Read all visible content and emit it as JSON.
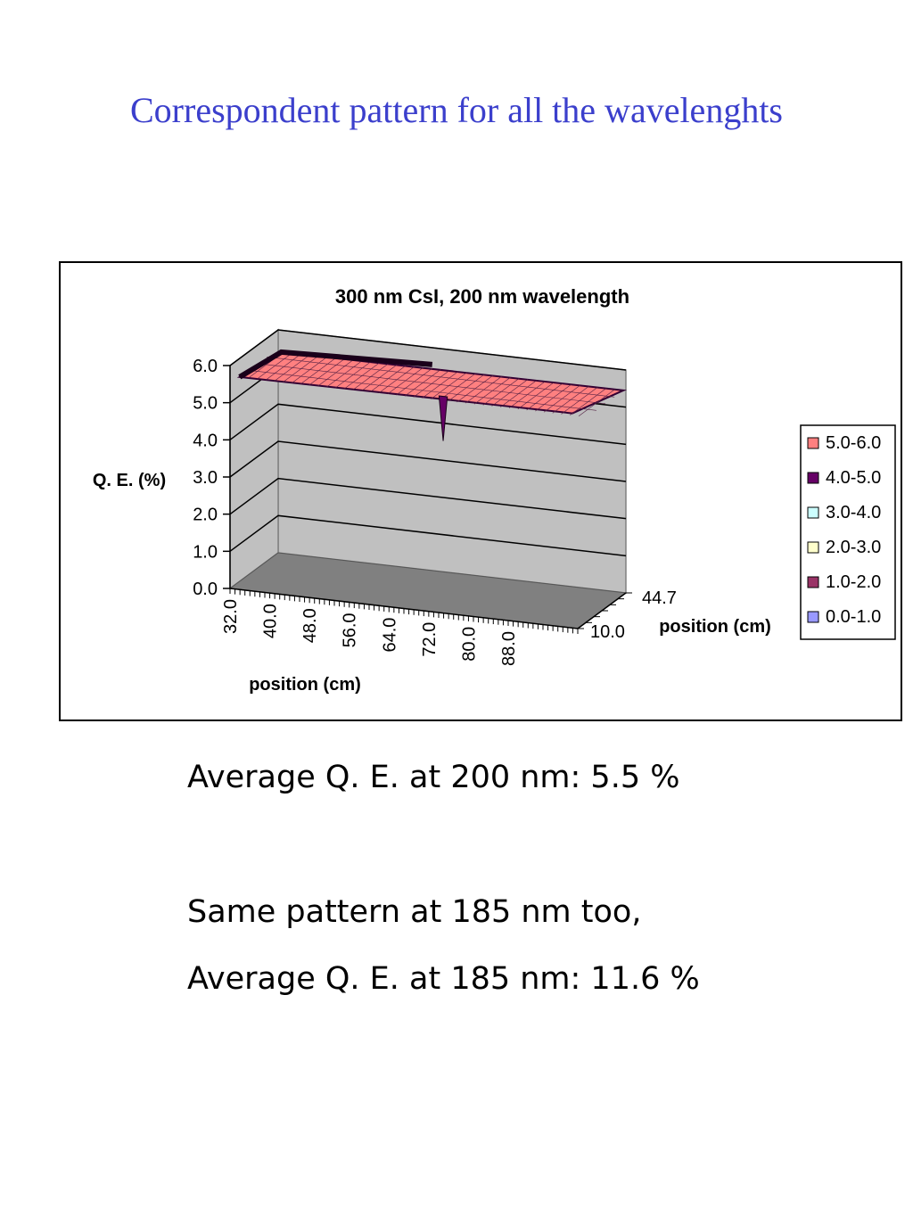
{
  "slide": {
    "title": "Correspondent pattern for all the wavelenghts"
  },
  "notes": {
    "line1": "Average Q. E. at 200 nm: 5.5 %",
    "line2": "Same pattern at 185 nm too,",
    "line3": "Average Q. E. at 185 nm: 11.6 %"
  },
  "chart_data": {
    "type": "surface",
    "title": "300 nm CsI, 200 nm wavelength",
    "zlabel": "Q. E. (%)",
    "xlabel": "position (cm)",
    "ylabel": "position (cm)",
    "zlim": [
      0,
      6
    ],
    "z_ticks": [
      "0.0",
      "1.0",
      "2.0",
      "3.0",
      "4.0",
      "5.0",
      "6.0"
    ],
    "x_ticks": [
      "32.0",
      "40.0",
      "48.0",
      "56.0",
      "64.0",
      "72.0",
      "80.0",
      "88.0"
    ],
    "x_range": [
      32.0,
      88.0
    ],
    "y_ticks": [
      "10.0",
      "44.7"
    ],
    "y_range": [
      10.0,
      44.7
    ],
    "grid": true,
    "legend_position": "right",
    "legend": [
      {
        "label": "5.0-6.0",
        "color": "#ff8080"
      },
      {
        "label": "4.0-5.0",
        "color": "#660066"
      },
      {
        "label": "3.0-4.0",
        "color": "#ccffff"
      },
      {
        "label": "2.0-3.0",
        "color": "#ffffcc"
      },
      {
        "label": "1.0-2.0",
        "color": "#993366"
      },
      {
        "label": "0.0-1.0",
        "color": "#9999ff"
      }
    ],
    "surface_level": 5.5,
    "dip": {
      "x": 64.0,
      "value": 4.3
    }
  }
}
